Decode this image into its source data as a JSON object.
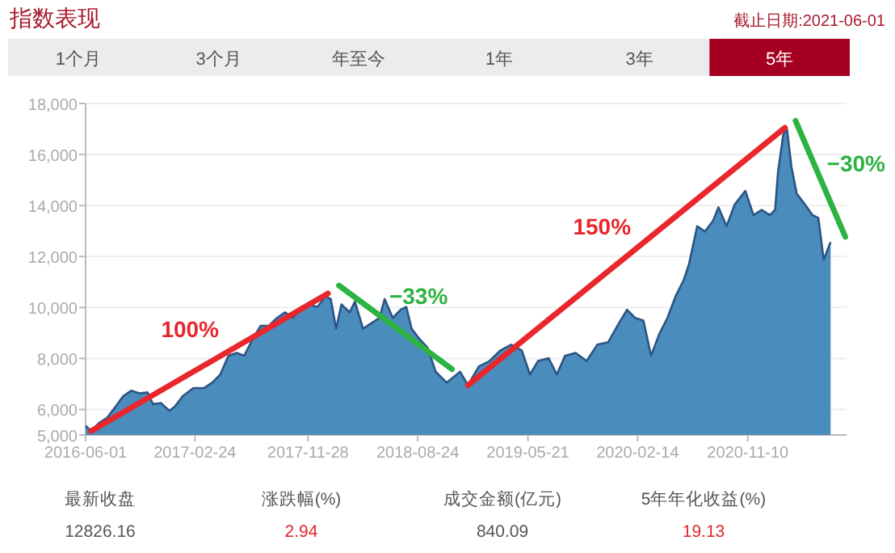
{
  "chart_data": [
    {
      "type": "area",
      "title": "指数表现",
      "subtitle": "截止日期:2021-06-01",
      "annotations": [
        "1个月",
        "3个月",
        "年至今",
        "1年",
        "3年",
        "5年"
      ],
      "xlim": [
        "2016-06-01",
        "2021-07-10"
      ],
      "xticks": [
        {
          "value": "2016-06-01",
          "label": "2016-06-01"
        },
        {
          "value": "2017-02-24",
          "label": "2017-02-24"
        },
        {
          "value": "2017-11-28",
          "label": "2017-11-28"
        },
        {
          "value": "2018-08-24",
          "label": "2018-08-24"
        },
        {
          "value": "2019-05-21",
          "label": "2019-05-21"
        },
        {
          "value": "2020-02-14",
          "label": "2020-02-14"
        },
        {
          "value": "2020-11-10",
          "label": "2020-11-10"
        }
      ],
      "ylim": [
        5000,
        18000
      ],
      "yticks": [
        {
          "value": 5000,
          "label": "5,000"
        },
        {
          "value": 6000,
          "label": "6,000"
        },
        {
          "value": 8000,
          "label": "8,000"
        },
        {
          "value": 10000,
          "label": "10,000"
        },
        {
          "value": 12000,
          "label": "12,000"
        },
        {
          "value": 14000,
          "label": "14,000"
        },
        {
          "value": 16000,
          "label": "16,000"
        },
        {
          "value": 18000,
          "label": "18,000"
        }
      ],
      "grid": "y",
      "series": [
        {
          "type": "area",
          "color": "#4a8cbc",
          "x": [
            "2016-06-01",
            "2016-06-14",
            "2016-07-04",
            "2016-07-24",
            "2016-08-13",
            "2016-09-01",
            "2016-09-21",
            "2016-10-11",
            "2016-10-31",
            "2016-11-13",
            "2016-12-03",
            "2016-12-23",
            "2017-01-05",
            "2017-01-25",
            "2017-02-20",
            "2017-03-18",
            "2017-04-07",
            "2017-04-27",
            "2017-05-17",
            "2017-06-06",
            "2017-06-25",
            "2017-07-15",
            "2017-08-04",
            "2017-08-24",
            "2017-09-13",
            "2017-10-03",
            "2017-10-22",
            "2017-11-11",
            "2017-12-01",
            "2017-12-21",
            "2018-01-10",
            "2018-01-23",
            "2018-02-05",
            "2018-02-18",
            "2018-03-10",
            "2018-03-23",
            "2018-04-12",
            "2018-05-02",
            "2018-05-22",
            "2018-06-04",
            "2018-06-24",
            "2018-07-13",
            "2018-07-27",
            "2018-08-09",
            "2018-08-29",
            "2018-09-17",
            "2018-10-07",
            "2018-11-03",
            "2018-12-06",
            "2018-12-25",
            "2019-01-21",
            "2019-02-16",
            "2019-03-15",
            "2019-04-10",
            "2019-05-06",
            "2019-05-26",
            "2019-06-15",
            "2019-07-11",
            "2019-07-31",
            "2019-08-20",
            "2019-09-15",
            "2019-10-12",
            "2019-11-07",
            "2019-12-04",
            "2019-12-30",
            "2020-01-19",
            "2020-02-08",
            "2020-02-28",
            "2020-03-18",
            "2020-04-07",
            "2020-04-27",
            "2020-05-17",
            "2020-06-06",
            "2020-06-19",
            "2020-07-09",
            "2020-07-28",
            "2020-08-17",
            "2020-08-30",
            "2020-09-19",
            "2020-10-09",
            "2020-11-04",
            "2020-11-24",
            "2020-12-14",
            "2021-01-03",
            "2021-01-16",
            "2021-01-23",
            "2021-02-05",
            "2021-02-14",
            "2021-02-25",
            "2021-03-10",
            "2021-03-30",
            "2021-04-18",
            "2021-05-02",
            "2021-05-15",
            "2021-06-01"
          ],
          "values": [
            5360,
            5150,
            5470,
            5680,
            6100,
            6520,
            6740,
            6630,
            6670,
            6210,
            6250,
            5950,
            6100,
            6520,
            6840,
            6840,
            7050,
            7370,
            8110,
            8220,
            8110,
            8750,
            9280,
            9280,
            9590,
            9810,
            9590,
            10020,
            10120,
            10020,
            10440,
            10330,
            9170,
            10120,
            9810,
            10230,
            9170,
            9380,
            9590,
            10330,
            9590,
            9910,
            10020,
            9170,
            8750,
            8430,
            7480,
            7050,
            7480,
            6950,
            7690,
            7900,
            8320,
            8540,
            8320,
            7370,
            7900,
            8010,
            7370,
            8110,
            8220,
            7900,
            8540,
            8640,
            9380,
            9910,
            9590,
            9490,
            8110,
            8960,
            9590,
            10440,
            11080,
            11710,
            13190,
            12980,
            13400,
            13930,
            13190,
            14040,
            14570,
            13620,
            13830,
            13620,
            13830,
            15310,
            16790,
            17000,
            15520,
            14460,
            14040,
            13620,
            13510,
            11870,
            12560
          ]
        },
        {
          "type": "line",
          "name": "100%",
          "color": "#e8262c",
          "x": [
            "2016-06-14",
            "2018-01-16"
          ],
          "values": [
            5150,
            10550
          ]
        },
        {
          "type": "line",
          "name": "−33%",
          "color": "#2db342",
          "x": [
            "2018-02-12",
            "2018-11-16"
          ],
          "values": [
            10860,
            7580
          ]
        },
        {
          "type": "line",
          "name": "150%",
          "color": "#e8262c",
          "x": [
            "2018-12-25",
            "2021-02-09"
          ],
          "values": [
            6950,
            17050
          ]
        },
        {
          "type": "line",
          "name": "−30%",
          "color": "#2db342",
          "x": [
            "2021-03-07",
            "2021-07-07"
          ],
          "values": [
            17320,
            12770
          ]
        }
      ]
    },
    {
      "type": "other",
      "categories": [
        "最新收盘",
        "涨跌幅(%)",
        "成交金额(亿元)",
        "5年年化收益(%)"
      ],
      "values": [
        12826.16,
        2.94,
        840.09,
        19.13
      ],
      "data_labels": true,
      "colors": [
        "#555555",
        "#e0242b",
        "#555555",
        "#e0242b"
      ]
    }
  ]
}
